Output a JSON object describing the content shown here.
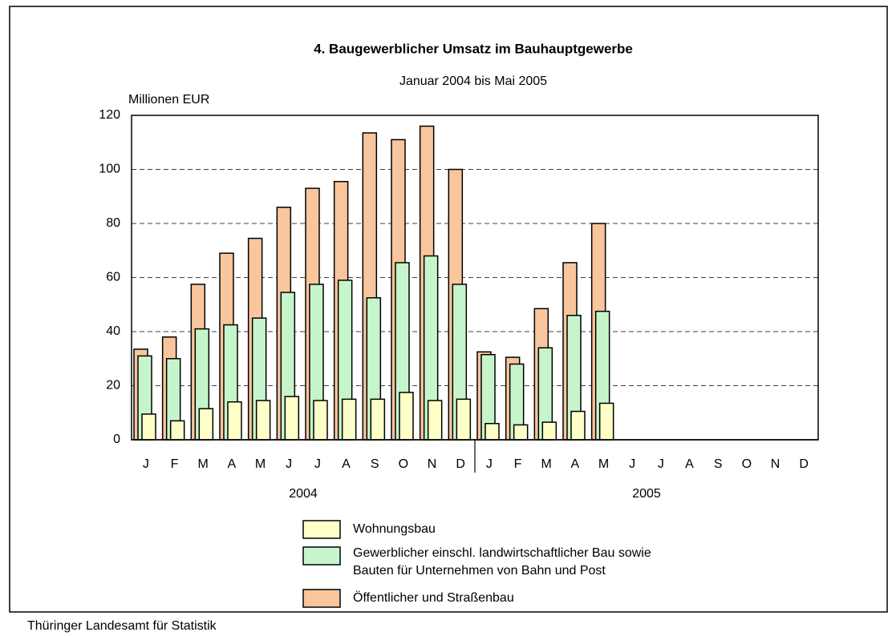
{
  "chart_data": {
    "type": "bar",
    "title": "4. Baugewerblicher Umsatz im Bauhauptgewerbe",
    "subtitle": "Januar 2004 bis Mai 2005",
    "y_label": "Millionen EUR",
    "source": "Thüringer Landesamt für Statistik",
    "categories": [
      "J",
      "F",
      "M",
      "A",
      "M",
      "J",
      "J",
      "A",
      "S",
      "O",
      "N",
      "D",
      "J",
      "F",
      "M",
      "A",
      "M",
      "J",
      "J",
      "A",
      "S",
      "O",
      "N",
      "D"
    ],
    "groups": [
      "2004",
      "2005"
    ],
    "series": [
      {
        "name": "Öffentlicher und Straßenbau",
        "color": "#f9c59c",
        "values": [
          33.5,
          38,
          57.5,
          69,
          74.5,
          86,
          93,
          95.5,
          113.5,
          111,
          116,
          100,
          32.5,
          30.5,
          48.5,
          65.5,
          80,
          null,
          null,
          null,
          null,
          null,
          null,
          null
        ]
      },
      {
        "name": "Gewerblicher einschl. landwirtschaftlicher Bau sowie\nBauten für Unternehmen von Bahn und Post",
        "color": "#c6f5cb",
        "values": [
          31,
          30,
          41,
          42.5,
          45,
          54.5,
          57.5,
          59,
          52.5,
          65.5,
          68,
          57.5,
          31.5,
          28,
          34,
          46,
          47.5,
          null,
          null,
          null,
          null,
          null,
          null,
          null
        ]
      },
      {
        "name": "Wohnungsbau",
        "color": "#ffffc8",
        "values": [
          9.5,
          7,
          11.5,
          14,
          14.5,
          16,
          14.5,
          15,
          15,
          17.5,
          14.5,
          15,
          6,
          5.5,
          6.5,
          10.5,
          13.5,
          null,
          null,
          null,
          null,
          null,
          null,
          null
        ]
      }
    ],
    "ylim": [
      0,
      120
    ],
    "yticks": [
      0,
      20,
      40,
      60,
      80,
      100,
      120
    ],
    "grid": true
  }
}
